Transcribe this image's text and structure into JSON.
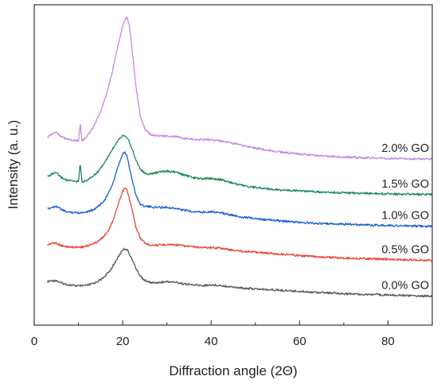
{
  "chart_data": {
    "type": "line",
    "xlabel": "Diffraction angle (2Θ)",
    "ylabel": "Intensity (a. u.)",
    "xlim": [
      0,
      90
    ],
    "x_ticks": [
      0,
      20,
      40,
      60,
      80
    ],
    "y_ticks_shown": false,
    "grid": false,
    "legend": "series labels at right end of each curve",
    "series": [
      {
        "name": "0.0% GO",
        "color": "#5a5a5a",
        "x": [
          3,
          4,
          5,
          6,
          7,
          8,
          9,
          10,
          11,
          12,
          13,
          14,
          15,
          16,
          17,
          18,
          19,
          20,
          20.5,
          21,
          22,
          23,
          24,
          25,
          26,
          27,
          28,
          30,
          32,
          34,
          36,
          38,
          40,
          42,
          44,
          46,
          48,
          50,
          55,
          60,
          65,
          70,
          75,
          80,
          85,
          90
        ],
        "y": [
          0.27,
          0.285,
          0.29,
          0.25,
          0.23,
          0.215,
          0.205,
          0.2,
          0.2,
          0.21,
          0.23,
          0.26,
          0.3,
          0.36,
          0.44,
          0.55,
          0.68,
          0.8,
          0.815,
          0.8,
          0.66,
          0.49,
          0.36,
          0.29,
          0.26,
          0.25,
          0.255,
          0.27,
          0.26,
          0.23,
          0.215,
          0.205,
          0.215,
          0.21,
          0.19,
          0.17,
          0.16,
          0.15,
          0.13,
          0.11,
          0.09,
          0.07,
          0.06,
          0.05,
          0.04,
          0.03
        ]
      },
      {
        "name": "0.5% GO",
        "color": "#e8453c",
        "x": [
          3,
          4,
          5,
          6,
          7,
          8,
          9,
          10,
          11,
          12,
          13,
          14,
          15,
          16,
          17,
          18,
          19,
          20,
          20.5,
          21,
          22,
          23,
          24,
          25,
          26,
          27,
          28,
          30,
          32,
          34,
          36,
          38,
          40,
          42,
          44,
          46,
          48,
          50,
          55,
          60,
          65,
          70,
          75,
          80,
          85,
          90
        ],
        "y": [
          0.88,
          0.905,
          0.91,
          0.87,
          0.85,
          0.845,
          0.84,
          0.84,
          0.845,
          0.86,
          0.89,
          0.92,
          0.97,
          1.04,
          1.15,
          1.32,
          1.55,
          1.76,
          1.82,
          1.78,
          1.5,
          1.17,
          0.99,
          0.91,
          0.88,
          0.875,
          0.875,
          0.885,
          0.88,
          0.86,
          0.845,
          0.835,
          0.835,
          0.825,
          0.8,
          0.78,
          0.77,
          0.76,
          0.73,
          0.7,
          0.68,
          0.66,
          0.65,
          0.64,
          0.63,
          0.625
        ]
      },
      {
        "name": "1.0% GO",
        "color": "#1a5fd6",
        "x": [
          3,
          4,
          5,
          6,
          7,
          8,
          9,
          10,
          11,
          12,
          13,
          14,
          15,
          16,
          17,
          18,
          19,
          20,
          20.5,
          21,
          22,
          23,
          24,
          25,
          26,
          27,
          28,
          30,
          32,
          34,
          36,
          38,
          40,
          42,
          44,
          46,
          48,
          50,
          55,
          60,
          65,
          70,
          75,
          80,
          85,
          90
        ],
        "y": [
          1.47,
          1.5,
          1.52,
          1.47,
          1.43,
          1.42,
          1.415,
          1.41,
          1.415,
          1.43,
          1.45,
          1.49,
          1.55,
          1.63,
          1.76,
          1.94,
          2.18,
          2.38,
          2.41,
          2.34,
          2.0,
          1.7,
          1.55,
          1.52,
          1.51,
          1.5,
          1.5,
          1.5,
          1.48,
          1.45,
          1.43,
          1.42,
          1.43,
          1.41,
          1.38,
          1.35,
          1.33,
          1.31,
          1.28,
          1.25,
          1.23,
          1.22,
          1.21,
          1.2,
          1.19,
          1.185
        ]
      },
      {
        "name": "1.5% GO",
        "color": "#1a8a52",
        "x": [
          3,
          4,
          5,
          6,
          7,
          8,
          9,
          10,
          10.4,
          10.8,
          11,
          12,
          13,
          14,
          15,
          16,
          17,
          18,
          19,
          20,
          20.5,
          21,
          22,
          23,
          24,
          25,
          26,
          27,
          28,
          30,
          32,
          34,
          36,
          38,
          40,
          42,
          44,
          46,
          48,
          50,
          55,
          60,
          65,
          70,
          75,
          80,
          85,
          90
        ],
        "y": [
          2.01,
          2.05,
          2.07,
          2.0,
          1.96,
          1.94,
          1.93,
          1.93,
          2.23,
          1.93,
          1.92,
          1.95,
          2.0,
          2.06,
          2.14,
          2.25,
          2.37,
          2.5,
          2.62,
          2.69,
          2.69,
          2.66,
          2.49,
          2.28,
          2.13,
          2.06,
          2.05,
          2.06,
          2.08,
          2.1,
          2.08,
          2.03,
          1.99,
          1.97,
          1.98,
          1.96,
          1.92,
          1.88,
          1.85,
          1.83,
          1.79,
          1.77,
          1.75,
          1.74,
          1.73,
          1.72,
          1.715,
          1.71
        ]
      },
      {
        "name": "2.0% GO",
        "color": "#c58ae0",
        "x": [
          3,
          4,
          5,
          6,
          7,
          8,
          9,
          10,
          10.4,
          10.8,
          11,
          12,
          13,
          14,
          15,
          16,
          17,
          18,
          19,
          20,
          20.5,
          21,
          21.5,
          22,
          23,
          24,
          25,
          26,
          27,
          28,
          30,
          32,
          34,
          36,
          38,
          40,
          42,
          44,
          46,
          48,
          50,
          55,
          60,
          65,
          70,
          75,
          80,
          85,
          90
        ],
        "y": [
          2.66,
          2.71,
          2.74,
          2.68,
          2.64,
          2.62,
          2.6,
          2.6,
          2.88,
          2.6,
          2.61,
          2.68,
          2.78,
          2.92,
          3.08,
          3.3,
          3.55,
          3.85,
          4.2,
          4.5,
          4.6,
          4.65,
          4.5,
          4.2,
          3.5,
          3.0,
          2.8,
          2.72,
          2.69,
          2.68,
          2.68,
          2.67,
          2.64,
          2.62,
          2.62,
          2.62,
          2.6,
          2.57,
          2.54,
          2.51,
          2.48,
          2.42,
          2.38,
          2.35,
          2.33,
          2.32,
          2.31,
          2.3,
          2.3
        ]
      }
    ]
  }
}
